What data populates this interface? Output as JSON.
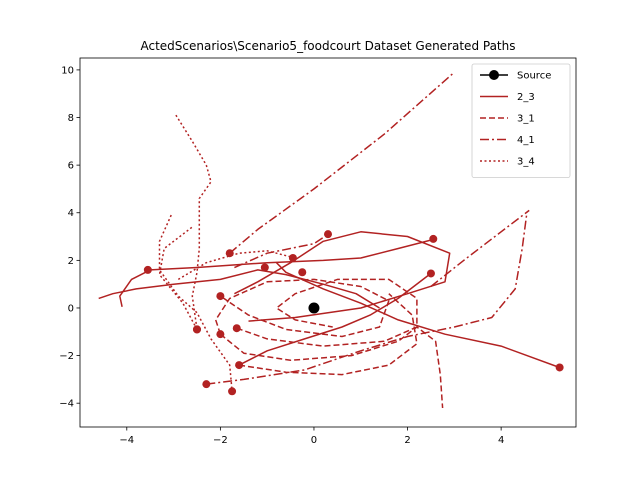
{
  "chart_data": {
    "type": "line",
    "title": "ActedScenarios\\Scenario5_foodcourt Dataset Generated Paths",
    "xlim": [
      -5.0,
      5.6
    ],
    "ylim": [
      -5.0,
      10.5
    ],
    "xticks": [
      -4,
      -2,
      0,
      2,
      4
    ],
    "yticks": [
      -4,
      -2,
      0,
      2,
      4,
      6,
      8,
      10
    ],
    "grid": false,
    "legend_position": "top-right",
    "colors": {
      "path": "#b22222",
      "source": "#000000"
    },
    "source": {
      "name": "Source",
      "x": 0.0,
      "y": 0.0
    },
    "series": [
      {
        "name": "2_3",
        "style": "solid",
        "paths": [
          {
            "points": [
              [
                -4.6,
                0.4
              ],
              [
                -4.3,
                0.6
              ],
              [
                -3.8,
                0.8
              ],
              [
                -3.0,
                1.0
              ],
              [
                -2.0,
                1.2
              ],
              [
                -1.2,
                1.6
              ],
              [
                -0.6,
                1.4
              ],
              [
                0.2,
                1.0
              ],
              [
                0.9,
                0.6
              ],
              [
                1.4,
                0.0
              ]
            ],
            "marker": [
              -3.55,
              1.6
            ]
          },
          {
            "points": [
              [
                -4.1,
                0.05
              ],
              [
                -4.15,
                0.5
              ],
              [
                -3.9,
                1.2
              ],
              [
                -3.5,
                1.6
              ],
              [
                -2.5,
                1.7
              ],
              [
                -1.0,
                1.9
              ],
              [
                0.2,
                2.0
              ],
              [
                1.0,
                2.1
              ],
              [
                1.8,
                2.5
              ],
              [
                2.6,
                2.9
              ]
            ],
            "marker": [
              2.55,
              2.9
            ]
          },
          {
            "points": [
              [
                -1.7,
                0.6
              ],
              [
                -1.2,
                1.1
              ],
              [
                -0.5,
                1.9
              ],
              [
                0.2,
                2.8
              ],
              [
                1.0,
                3.2
              ],
              [
                2.0,
                3.0
              ],
              [
                2.9,
                2.3
              ],
              [
                2.8,
                1.1
              ],
              [
                2.0,
                0.6
              ],
              [
                1.0,
                0.0
              ],
              [
                -0.4,
                -0.4
              ],
              [
                -1.4,
                -0.55
              ]
            ],
            "marker": [
              -1.65,
              -0.85
            ]
          },
          {
            "points": [
              [
                -0.8,
                1.9
              ],
              [
                -0.6,
                1.5
              ],
              [
                0.2,
                0.8
              ],
              [
                1.0,
                0.2
              ],
              [
                1.8,
                -0.5
              ],
              [
                2.8,
                -1.1
              ],
              [
                4.0,
                -1.6
              ],
              [
                5.25,
                -2.5
              ]
            ],
            "marker": [
              5.25,
              -2.5
            ]
          },
          {
            "points": [
              [
                -1.6,
                -2.4
              ],
              [
                -1.0,
                -1.8
              ],
              [
                -0.2,
                -1.3
              ],
              [
                0.6,
                -0.8
              ],
              [
                1.2,
                -0.3
              ],
              [
                1.8,
                0.4
              ],
              [
                2.5,
                1.45
              ]
            ],
            "marker": [
              2.5,
              1.45
            ]
          }
        ]
      },
      {
        "name": "3_1",
        "style": "dashed",
        "paths": [
          {
            "points": [
              [
                -2.0,
                -1.1
              ],
              [
                -2.1,
                -0.5
              ],
              [
                -1.8,
                0.4
              ],
              [
                -1.0,
                1.1
              ],
              [
                0.0,
                1.2
              ],
              [
                1.0,
                0.9
              ],
              [
                1.6,
                0.3
              ],
              [
                1.4,
                -0.8
              ],
              [
                0.6,
                -1.2
              ],
              [
                -0.6,
                -0.9
              ],
              [
                -1.4,
                -0.3
              ],
              [
                -2.0,
                0.5
              ]
            ],
            "marker": [
              -2.0,
              0.5
            ]
          },
          {
            "points": [
              [
                -1.65,
                -0.85
              ],
              [
                -1.0,
                -1.3
              ],
              [
                0.2,
                -1.6
              ],
              [
                1.5,
                -1.4
              ],
              [
                2.2,
                -0.8
              ],
              [
                2.2,
                0.4
              ],
              [
                1.6,
                1.2
              ],
              [
                0.5,
                1.2
              ],
              [
                -0.4,
                0.6
              ],
              [
                -0.8,
                0.0
              ],
              [
                -0.4,
                -0.5
              ],
              [
                0.4,
                -0.8
              ]
            ],
            "marker": [
              -0.25,
              1.5
            ]
          },
          {
            "points": [
              [
                -2.0,
                -1.1
              ],
              [
                -1.5,
                -1.9
              ],
              [
                -0.5,
                -2.2
              ],
              [
                0.8,
                -2.0
              ],
              [
                1.8,
                -1.4
              ],
              [
                2.2,
                -0.8
              ],
              [
                2.6,
                -1.4
              ],
              [
                2.7,
                -2.8
              ],
              [
                2.75,
                -4.2
              ]
            ],
            "marker": [
              -2.0,
              -1.1
            ]
          },
          {
            "points": [
              [
                -1.6,
                -2.4
              ],
              [
                -0.6,
                -2.7
              ],
              [
                0.6,
                -2.8
              ],
              [
                1.6,
                -2.4
              ],
              [
                2.2,
                -1.5
              ],
              [
                2.1,
                -0.3
              ],
              [
                1.6,
                0.6
              ]
            ],
            "marker": [
              -1.6,
              -2.4
            ]
          }
        ]
      },
      {
        "name": "4_1",
        "style": "dashdot",
        "paths": [
          {
            "points": [
              [
                -1.8,
                2.3
              ],
              [
                -1.2,
                3.3
              ],
              [
                0.0,
                5.0
              ],
              [
                1.5,
                7.3
              ],
              [
                3.0,
                9.9
              ]
            ],
            "marker": [
              -1.8,
              2.3
            ]
          },
          {
            "points": [
              [
                -2.3,
                -3.2
              ],
              [
                -1.5,
                -3.0
              ],
              [
                -0.2,
                -2.6
              ],
              [
                1.0,
                -1.8
              ],
              [
                2.0,
                -1.2
              ],
              [
                3.0,
                -0.8
              ],
              [
                3.8,
                -0.4
              ],
              [
                4.3,
                0.8
              ],
              [
                4.45,
                2.5
              ],
              [
                4.55,
                4.0
              ]
            ],
            "marker": [
              -2.3,
              -3.2
            ]
          },
          {
            "points": [
              [
                -1.7,
                1.7
              ],
              [
                -1.0,
                2.3
              ],
              [
                0.0,
                2.7
              ],
              [
                0.3,
                3.1
              ]
            ],
            "marker": [
              0.3,
              3.1
            ]
          },
          {
            "points": [
              [
                2.5,
                0.9
              ],
              [
                3.2,
                2.0
              ],
              [
                4.0,
                3.2
              ],
              [
                4.6,
                4.1
              ]
            ],
            "marker": [
              -1.05,
              1.7
            ]
          }
        ]
      },
      {
        "name": "3_4",
        "style": "dotted",
        "paths": [
          {
            "points": [
              [
                -2.95,
                8.1
              ],
              [
                -2.6,
                7.0
              ],
              [
                -2.3,
                6.0
              ],
              [
                -2.2,
                5.3
              ],
              [
                -2.45,
                4.6
              ],
              [
                -2.45,
                3.5
              ],
              [
                -2.45,
                2.5
              ],
              [
                -2.5,
                1.5
              ],
              [
                -2.6,
                0.5
              ],
              [
                -2.5,
                -0.9
              ]
            ],
            "marker": [
              -2.5,
              -0.9
            ]
          },
          {
            "points": [
              [
                -3.05,
                3.9
              ],
              [
                -3.3,
                2.8
              ],
              [
                -3.3,
                1.6
              ],
              [
                -2.9,
                0.5
              ],
              [
                -2.5,
                -0.2
              ],
              [
                -2.2,
                -1.3
              ],
              [
                -1.8,
                -2.4
              ],
              [
                -1.75,
                -3.5
              ]
            ],
            "marker": [
              -1.75,
              -3.5
            ]
          },
          {
            "points": [
              [
                -2.9,
                1.2
              ],
              [
                -2.3,
                1.9
              ],
              [
                -1.6,
                2.3
              ],
              [
                -1.0,
                2.4
              ],
              [
                -0.4,
                2.1
              ]
            ],
            "marker": [
              -0.45,
              2.1
            ]
          },
          {
            "points": [
              [
                -2.5,
                -0.9
              ],
              [
                -2.8,
                0.2
              ],
              [
                -3.3,
                1.4
              ],
              [
                -3.2,
                2.5
              ],
              [
                -2.6,
                3.4
              ]
            ],
            "marker": [
              -2.5,
              -0.9
            ]
          }
        ]
      }
    ]
  }
}
